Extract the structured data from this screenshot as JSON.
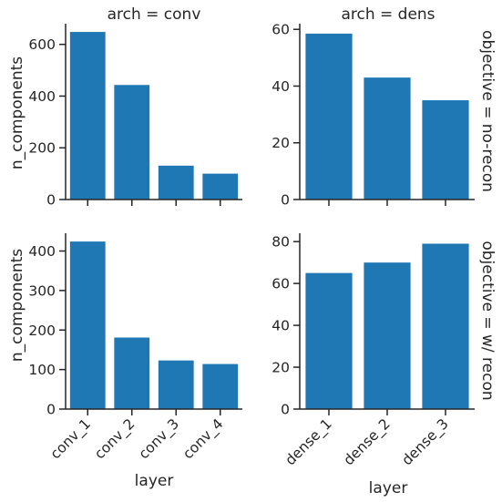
{
  "chart_data": {
    "type": "bar",
    "bar_color": "#1f77b4",
    "xlabel": "layer",
    "ylabel": "n_components",
    "col_titles": [
      "arch = conv",
      "arch = dens"
    ],
    "row_labels": [
      "objective = no-recon",
      "objective = w/ recon"
    ],
    "panels": [
      {
        "row": 0,
        "col": 0,
        "categories": [
          "conv_1",
          "conv_2",
          "conv_3",
          "conv_4"
        ],
        "values": [
          648,
          443,
          131,
          100
        ],
        "ylim": [
          0,
          680
        ],
        "yticks": [
          0,
          200,
          400,
          600
        ]
      },
      {
        "row": 0,
        "col": 1,
        "categories": [
          "dense_1",
          "dense_2",
          "dense_3"
        ],
        "values": [
          58.5,
          43,
          35
        ],
        "ylim": [
          0,
          62
        ],
        "yticks": [
          0,
          20,
          40,
          60
        ]
      },
      {
        "row": 1,
        "col": 0,
        "categories": [
          "conv_1",
          "conv_2",
          "conv_3",
          "conv_4"
        ],
        "values": [
          424,
          181,
          123,
          114
        ],
        "ylim": [
          0,
          445
        ],
        "yticks": [
          0,
          100,
          200,
          300,
          400
        ]
      },
      {
        "row": 1,
        "col": 1,
        "categories": [
          "dense_1",
          "dense_2",
          "dense_3"
        ],
        "values": [
          65,
          70,
          79
        ],
        "ylim": [
          0,
          84
        ],
        "yticks": [
          0,
          20,
          40,
          60,
          80
        ]
      }
    ]
  }
}
